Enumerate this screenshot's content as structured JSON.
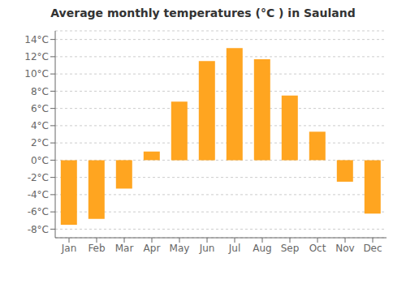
{
  "chart_data": {
    "type": "bar",
    "title": "Average monthly temperatures (°C ) in Sauland",
    "categories": [
      "Jan",
      "Feb",
      "Mar",
      "Apr",
      "May",
      "Jun",
      "Jul",
      "Aug",
      "Sep",
      "Oct",
      "Nov",
      "Dec"
    ],
    "values": [
      -7.5,
      -6.8,
      -3.3,
      1.0,
      6.8,
      11.5,
      13.0,
      11.7,
      7.5,
      3.3,
      -2.5,
      -6.2
    ],
    "color": "#FFA520",
    "ylim": [
      -9,
      15
    ],
    "yticks": [
      {
        "value": -8,
        "label": "-8°C"
      },
      {
        "value": -6,
        "label": "-6°C"
      },
      {
        "value": -4,
        "label": "-4°C"
      },
      {
        "value": -2,
        "label": "-2°C"
      },
      {
        "value": 0,
        "label": "0°C"
      },
      {
        "value": 2,
        "label": "2°C"
      },
      {
        "value": 4,
        "label": "4°C"
      },
      {
        "value": 6,
        "label": "6°C"
      },
      {
        "value": 8,
        "label": "8°C"
      },
      {
        "value": 10,
        "label": "10°C"
      },
      {
        "value": 12,
        "label": "12°C"
      },
      {
        "value": 14,
        "label": "14°C"
      }
    ],
    "grid": true
  }
}
